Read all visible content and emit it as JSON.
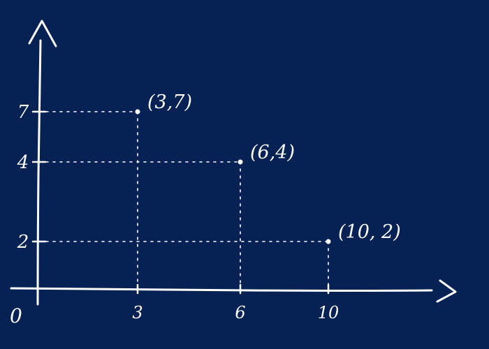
{
  "colors": {
    "background": "#062254",
    "chalk": "#ffffff"
  },
  "origin_label": "0",
  "chart_data": {
    "type": "scatter",
    "title": "",
    "xlabel": "",
    "ylabel": "",
    "grid": false,
    "guide_lines": "dotted",
    "x_ticks": [
      "3",
      "6",
      "10"
    ],
    "y_ticks": [
      "7",
      "4",
      "2"
    ],
    "points": [
      {
        "x": 3,
        "y": 7,
        "label": "(3,7)"
      },
      {
        "x": 6,
        "y": 4,
        "label": "(6,4)"
      },
      {
        "x": 10,
        "y": 2,
        "label": "(10, 2)"
      }
    ]
  }
}
